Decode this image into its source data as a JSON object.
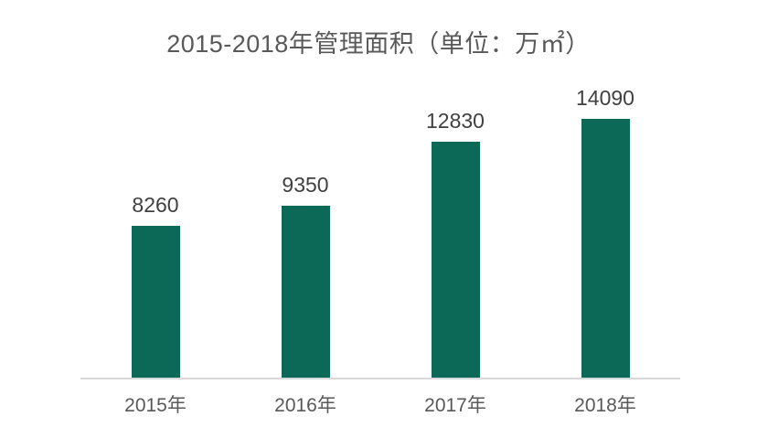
{
  "chart_data": {
    "type": "bar",
    "title": "2015-2018年管理面积（单位：万㎡）",
    "unit": "万㎡",
    "categories": [
      "2015年",
      "2016年",
      "2017年",
      "2018年"
    ],
    "values": [
      8260,
      9350,
      12830,
      14090
    ],
    "ylim": [
      0,
      14090
    ],
    "grid": "off",
    "legend": "none",
    "value_labels_position": "above-bars",
    "colors": {
      "bar": "#0c6857",
      "axis_line": "#d9d9d9",
      "title_text": "#595959",
      "value_label_text": "#404040",
      "category_label_text": "#595959",
      "background": "#ffffff"
    }
  }
}
